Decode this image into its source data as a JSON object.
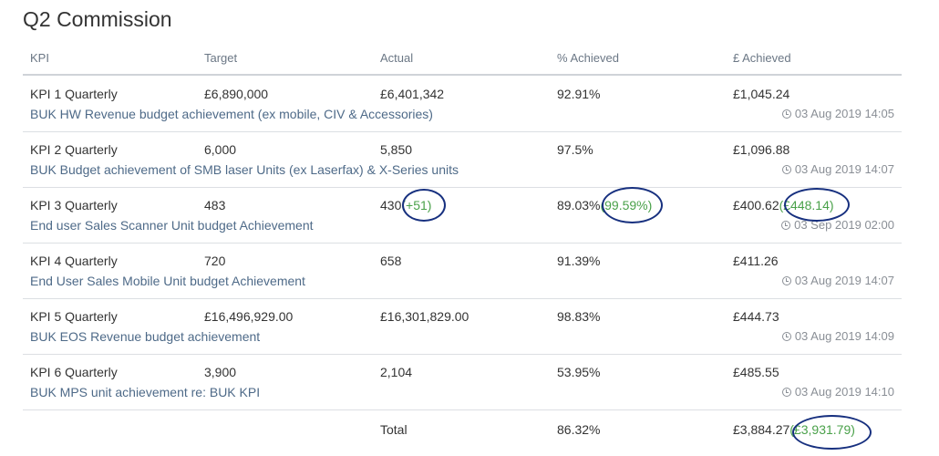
{
  "page": {
    "title": "Q2 Commission"
  },
  "columns": [
    "KPI",
    "Target",
    "Actual",
    "% Achieved",
    "£ Achieved"
  ],
  "rows": [
    {
      "kpi": "KPI 1 Quarterly",
      "target": "£6,890,000",
      "actual": "£6,401,342",
      "actual_extra": "",
      "pct": "92.91%",
      "pct_extra": "",
      "gbp": "£1,045.24",
      "gbp_extra": "",
      "description": "BUK HW Revenue budget achievement (ex mobile, CIV & Accessories)",
      "timestamp": "03 Aug 2019 14:05"
    },
    {
      "kpi": "KPI 2 Quarterly",
      "target": "6,000",
      "actual": "5,850",
      "actual_extra": "",
      "pct": "97.5%",
      "pct_extra": "",
      "gbp": "£1,096.88",
      "gbp_extra": "",
      "description": "BUK Budget achievement of SMB laser Units (ex Laserfax) & X-Series units",
      "timestamp": "03 Aug 2019 14:07"
    },
    {
      "kpi": "KPI 3 Quarterly",
      "target": "483",
      "actual": "430",
      "actual_extra": "(+51)",
      "pct": "89.03%",
      "pct_extra": "(99.59%)",
      "gbp": "£400.62",
      "gbp_extra": "(£448.14)",
      "description": "End user Sales Scanner Unit budget Achievement",
      "timestamp": "03 Sep 2019 02:00"
    },
    {
      "kpi": "KPI 4 Quarterly",
      "target": "720",
      "actual": "658",
      "actual_extra": "",
      "pct": "91.39%",
      "pct_extra": "",
      "gbp": "£411.26",
      "gbp_extra": "",
      "description": "End User Sales Mobile Unit budget Achievement",
      "timestamp": "03 Aug 2019 14:07"
    },
    {
      "kpi": "KPI 5 Quarterly",
      "target": "£16,496,929.00",
      "actual": "£16,301,829.00",
      "actual_extra": "",
      "pct": "98.83%",
      "pct_extra": "",
      "gbp": "£444.73",
      "gbp_extra": "",
      "description": "BUK EOS Revenue budget achievement",
      "timestamp": "03 Aug 2019 14:09"
    },
    {
      "kpi": "KPI 6 Quarterly",
      "target": "3,900",
      "actual": "2,104",
      "actual_extra": "",
      "pct": "53.95%",
      "pct_extra": "",
      "gbp": "£485.55",
      "gbp_extra": "",
      "description": "BUK MPS unit achievement re: BUK KPI",
      "timestamp": "03 Aug 2019 14:10"
    }
  ],
  "total": {
    "label": "Total",
    "pct": "86.32%",
    "gbp": "£3,884.27",
    "gbp_extra": "(£3,931.79)"
  },
  "colors": {
    "link_text": "#4e6a88",
    "highlight_green": "#4aa14a",
    "annotation_ring": "#17307f"
  }
}
